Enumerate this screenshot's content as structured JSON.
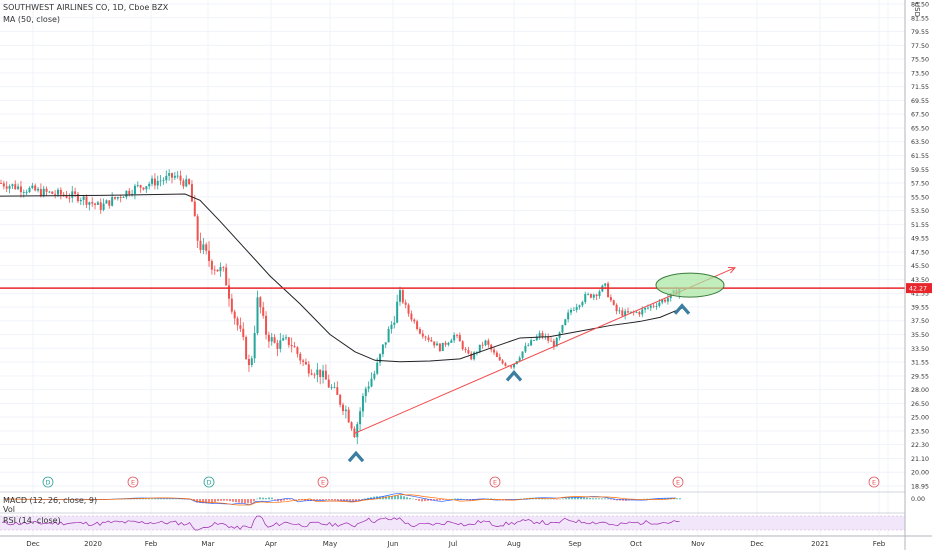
{
  "chart_data": {
    "type": "candlestick",
    "title": "SOUTHWEST AIRLINES CO, 1D, Cboe BZX",
    "currency": "USD",
    "ma_label": "MA (50, close)",
    "price_axis": {
      "ticks": [
        "83.50",
        "81.55",
        "79.55",
        "77.50",
        "75.50",
        "73.50",
        "71.55",
        "69.55",
        "67.50",
        "65.50",
        "63.50",
        "61.55",
        "59.55",
        "57.50",
        "55.50",
        "53.50",
        "51.55",
        "49.55",
        "47.50",
        "45.50",
        "43.50",
        "41.55",
        "39.55",
        "37.50",
        "35.50",
        "33.50",
        "31.55",
        "29.55",
        "28.00",
        "26.50",
        "25.00",
        "23.50",
        "22.30",
        "21.10",
        "20.00",
        "18.95"
      ],
      "current_price": "42.27",
      "range": [
        18.7,
        85.5
      ]
    },
    "time_axis": [
      "Dec",
      "2020",
      "Feb",
      "Mar",
      "Apr",
      "May",
      "Jun",
      "Jul",
      "Aug",
      "Sep",
      "Oct",
      "Nov",
      "Dec",
      "2021",
      "Feb"
    ],
    "price_path": [
      [
        0,
        57.5
      ],
      [
        40,
        56.2
      ],
      [
        80,
        55.5
      ],
      [
        100,
        54.0
      ],
      [
        130,
        56.5
      ],
      [
        150,
        57.5
      ],
      [
        175,
        58.5
      ],
      [
        190,
        57.0
      ],
      [
        196,
        50.0
      ],
      [
        205,
        47.0
      ],
      [
        225,
        44.0
      ],
      [
        235,
        38.0
      ],
      [
        245,
        33.5
      ],
      [
        250,
        30.0
      ],
      [
        258,
        41.0
      ],
      [
        265,
        36.0
      ],
      [
        275,
        34.0
      ],
      [
        290,
        34.5
      ],
      [
        305,
        31.0
      ],
      [
        320,
        30.0
      ],
      [
        335,
        27.5
      ],
      [
        345,
        26.0
      ],
      [
        355,
        23.3
      ],
      [
        365,
        28.0
      ],
      [
        375,
        30.0
      ],
      [
        385,
        34.5
      ],
      [
        393,
        37.5
      ],
      [
        400,
        41.5
      ],
      [
        407,
        39.0
      ],
      [
        420,
        36.0
      ],
      [
        440,
        33.5
      ],
      [
        455,
        35.5
      ],
      [
        470,
        32.0
      ],
      [
        485,
        34.5
      ],
      [
        500,
        31.5
      ],
      [
        512,
        31.0
      ],
      [
        525,
        33.5
      ],
      [
        540,
        35.5
      ],
      [
        555,
        34.0
      ],
      [
        570,
        39.0
      ],
      [
        585,
        41.0
      ],
      [
        595,
        41.5
      ],
      [
        605,
        42.5
      ],
      [
        615,
        39.0
      ],
      [
        625,
        38.5
      ],
      [
        640,
        38.8
      ],
      [
        655,
        40.0
      ],
      [
        670,
        41.0
      ],
      [
        680,
        42.3
      ]
    ],
    "ma_path": [
      [
        0,
        55.6
      ],
      [
        100,
        55.7
      ],
      [
        185,
        55.9
      ],
      [
        200,
        55.0
      ],
      [
        220,
        52.0
      ],
      [
        245,
        48.0
      ],
      [
        270,
        44.0
      ],
      [
        300,
        40.0
      ],
      [
        330,
        35.5
      ],
      [
        355,
        33.0
      ],
      [
        375,
        31.8
      ],
      [
        400,
        31.6
      ],
      [
        430,
        31.7
      ],
      [
        460,
        32.0
      ],
      [
        490,
        33.5
      ],
      [
        520,
        35.0
      ],
      [
        550,
        35.2
      ],
      [
        580,
        36.0
      ],
      [
        610,
        36.8
      ],
      [
        640,
        37.4
      ],
      [
        660,
        38.0
      ],
      [
        684,
        39.5
      ]
    ],
    "resistance_level": 42.27,
    "trendline": {
      "from": [
        355,
        23.3
      ],
      "to": [
        735,
        45.2
      ]
    },
    "highlight_circle": {
      "center": [
        690,
        42.7
      ]
    },
    "swing_lows": [
      [
        356,
        21.3
      ],
      [
        514,
        29.6
      ],
      [
        682,
        39.3
      ]
    ],
    "event_markers": [
      {
        "x": 48,
        "letter": "D",
        "kind": "dividend"
      },
      {
        "x": 133,
        "letter": "E",
        "kind": "earnings"
      },
      {
        "x": 209,
        "letter": "D",
        "kind": "dividend"
      },
      {
        "x": 323,
        "letter": "E",
        "kind": "earnings"
      },
      {
        "x": 495,
        "letter": "E",
        "kind": "earnings"
      },
      {
        "x": 678,
        "letter": "E",
        "kind": "earnings"
      },
      {
        "x": 874,
        "letter": "E",
        "kind": "earnings"
      }
    ],
    "macd": {
      "label": "MACD (12, 26, close, 9)",
      "tick": "0.00"
    },
    "volume": {
      "label": "Vol"
    },
    "rsi": {
      "label": "RSI (14, close)"
    }
  },
  "colors": {
    "up": "#26a69a",
    "down": "#ef5350",
    "ma": "#222222",
    "resistance": "#e8252b",
    "trendline": "#f24a4a",
    "highlight": "#a8e6a1",
    "arrow": "#3b7ea1",
    "rsi_band": "#f1e6fa",
    "rsi_line": "#9c27b0",
    "macd_line": "#2962ff",
    "signal_line": "#ff6d00"
  }
}
